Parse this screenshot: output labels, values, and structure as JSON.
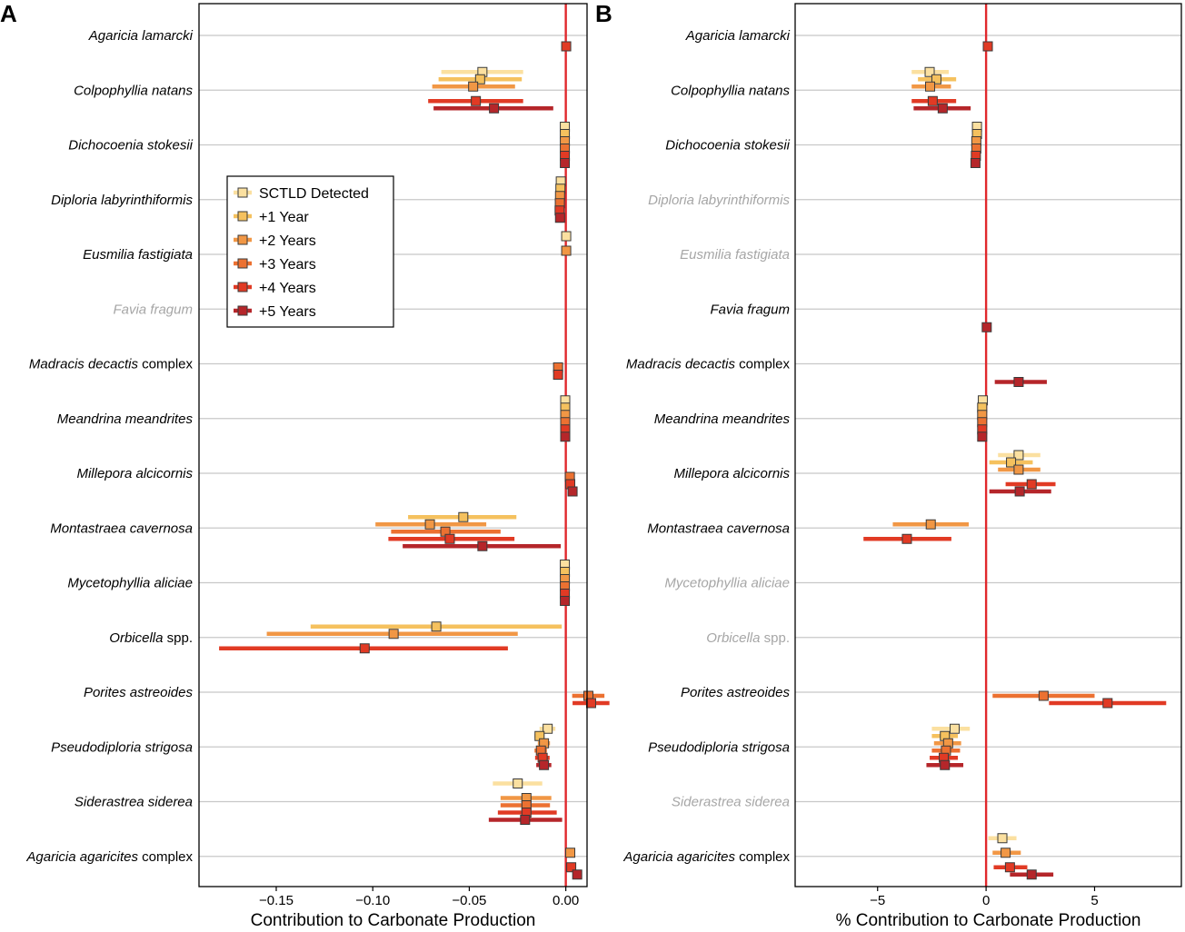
{
  "colors": {
    "series": [
      "#fbe0a0",
      "#f5c15e",
      "#f19745",
      "#ec7131",
      "#e13a24",
      "#b5262a"
    ],
    "reference_line": "#e0282c",
    "grid": "#c8c8c8"
  },
  "legend": {
    "position": "top-left inside panel A",
    "entries": [
      "SCTLD Detected",
      "+1 Year",
      "+2 Years",
      "+3 Years",
      "+4 Years",
      "+5 Years"
    ]
  },
  "species": [
    {
      "genus": "Agaricia lamarcki",
      "suffix": ""
    },
    {
      "genus": "Colpophyllia natans",
      "suffix": ""
    },
    {
      "genus": "Dichocoenia stokesii",
      "suffix": ""
    },
    {
      "genus": "Diploria labyrinthiformis",
      "suffix": ""
    },
    {
      "genus": "Eusmilia fastigiata",
      "suffix": ""
    },
    {
      "genus": "Favia fragum",
      "suffix": ""
    },
    {
      "genus": "Madracis decactis",
      "suffix": " complex"
    },
    {
      "genus": "Meandrina meandrites",
      "suffix": ""
    },
    {
      "genus": "Millepora alcicornis",
      "suffix": ""
    },
    {
      "genus": "Montastraea cavernosa",
      "suffix": ""
    },
    {
      "genus": "Mycetophyllia aliciae",
      "suffix": ""
    },
    {
      "genus": "Orbicella",
      "suffix": " spp."
    },
    {
      "genus": "Porites astreoides",
      "suffix": ""
    },
    {
      "genus": "Pseudodiploria strigosa",
      "suffix": ""
    },
    {
      "genus": "Siderastrea siderea",
      "suffix": ""
    },
    {
      "genus": "Agaricia agaricites",
      "suffix": " complex"
    }
  ],
  "chart_data": [
    {
      "type": "forest",
      "panel_label": "A",
      "xlabel": "Contribution to Carbonate Production",
      "xlim": [
        -0.19,
        0.011
      ],
      "xticks": [
        -0.15,
        -0.1,
        -0.05,
        0.0
      ],
      "xtick_labels": [
        "−0.15",
        "−0.10",
        "−0.05",
        "0.00"
      ],
      "reference_x": 0,
      "absent_species": [
        5
      ],
      "points": [
        {
          "row": 0,
          "series": 4,
          "x": 0.0002,
          "lo": 0.0002,
          "hi": 0.0002
        },
        {
          "row": 1,
          "series": 0,
          "x": -0.0432,
          "lo": -0.0645,
          "hi": -0.0221
        },
        {
          "row": 1,
          "series": 1,
          "x": -0.0444,
          "lo": -0.0659,
          "hi": -0.0228
        },
        {
          "row": 1,
          "series": 2,
          "x": -0.048,
          "lo": -0.0692,
          "hi": -0.0263
        },
        {
          "row": 1,
          "series": 4,
          "x": -0.0466,
          "lo": -0.0713,
          "hi": -0.0221
        },
        {
          "row": 1,
          "series": 5,
          "x": -0.0372,
          "lo": -0.0685,
          "hi": -0.0065
        },
        {
          "row": 2,
          "series": 0,
          "x": -0.0005,
          "lo": -0.0005,
          "hi": -0.0005
        },
        {
          "row": 2,
          "series": 1,
          "x": -0.0005,
          "lo": -0.0005,
          "hi": -0.0005
        },
        {
          "row": 2,
          "series": 2,
          "x": -0.0005,
          "lo": -0.0005,
          "hi": -0.0005
        },
        {
          "row": 2,
          "series": 3,
          "x": -0.0005,
          "lo": -0.0005,
          "hi": -0.0005
        },
        {
          "row": 2,
          "series": 4,
          "x": -0.0005,
          "lo": -0.0005,
          "hi": -0.0005
        },
        {
          "row": 2,
          "series": 5,
          "x": -0.0005,
          "lo": -0.0005,
          "hi": -0.0005
        },
        {
          "row": 3,
          "series": 0,
          "x": -0.0026,
          "lo": -0.0026,
          "hi": -0.0026
        },
        {
          "row": 3,
          "series": 1,
          "x": -0.0028,
          "lo": -0.0028,
          "hi": -0.0028
        },
        {
          "row": 3,
          "series": 2,
          "x": -0.003,
          "lo": -0.003,
          "hi": -0.003
        },
        {
          "row": 3,
          "series": 3,
          "x": -0.0031,
          "lo": -0.0031,
          "hi": -0.0031
        },
        {
          "row": 3,
          "series": 4,
          "x": -0.0032,
          "lo": -0.0032,
          "hi": -0.0032
        },
        {
          "row": 3,
          "series": 5,
          "x": -0.003,
          "lo": -0.003,
          "hi": -0.003
        },
        {
          "row": 4,
          "series": 0,
          "x": 0.0002,
          "lo": 0.0002,
          "hi": 0.0002
        },
        {
          "row": 4,
          "series": 2,
          "x": 0.0002,
          "lo": 0.0002,
          "hi": 0.0002
        },
        {
          "row": 6,
          "series": 3,
          "x": -0.004,
          "lo": -0.004,
          "hi": -0.004
        },
        {
          "row": 6,
          "series": 4,
          "x": -0.004,
          "lo": -0.005,
          "hi": -0.003
        },
        {
          "row": 7,
          "series": 0,
          "x": -0.0003,
          "lo": -0.0003,
          "hi": -0.0003
        },
        {
          "row": 7,
          "series": 1,
          "x": -0.0003,
          "lo": -0.0003,
          "hi": -0.0003
        },
        {
          "row": 7,
          "series": 2,
          "x": -0.0003,
          "lo": -0.0003,
          "hi": -0.0003
        },
        {
          "row": 7,
          "series": 3,
          "x": -0.0003,
          "lo": -0.0003,
          "hi": -0.0003
        },
        {
          "row": 7,
          "series": 4,
          "x": -0.0003,
          "lo": -0.0003,
          "hi": -0.0003
        },
        {
          "row": 7,
          "series": 5,
          "x": -0.0003,
          "lo": -0.0003,
          "hi": -0.0003
        },
        {
          "row": 8,
          "series": 3,
          "x": 0.0021,
          "lo": 0.0021,
          "hi": 0.0021
        },
        {
          "row": 8,
          "series": 4,
          "x": 0.0023,
          "lo": 0.0023,
          "hi": 0.0023
        },
        {
          "row": 8,
          "series": 5,
          "x": 0.0035,
          "lo": 0.0035,
          "hi": 0.0035
        },
        {
          "row": 9,
          "series": 1,
          "x": -0.0531,
          "lo": -0.0817,
          "hi": -0.0256
        },
        {
          "row": 9,
          "series": 2,
          "x": -0.0704,
          "lo": -0.0986,
          "hi": -0.0412
        },
        {
          "row": 9,
          "series": 3,
          "x": -0.0624,
          "lo": -0.0905,
          "hi": -0.0338
        },
        {
          "row": 9,
          "series": 4,
          "x": -0.0601,
          "lo": -0.0919,
          "hi": -0.0266
        },
        {
          "row": 9,
          "series": 5,
          "x": -0.0432,
          "lo": -0.0845,
          "hi": -0.0026
        },
        {
          "row": 10,
          "series": 0,
          "x": -0.0005,
          "lo": -0.0005,
          "hi": -0.0005
        },
        {
          "row": 10,
          "series": 1,
          "x": -0.0005,
          "lo": -0.0005,
          "hi": -0.0005
        },
        {
          "row": 10,
          "series": 2,
          "x": -0.0005,
          "lo": -0.0005,
          "hi": -0.0005
        },
        {
          "row": 10,
          "series": 3,
          "x": -0.0005,
          "lo": -0.0005,
          "hi": -0.0005
        },
        {
          "row": 10,
          "series": 4,
          "x": -0.0005,
          "lo": -0.0005,
          "hi": -0.0005
        },
        {
          "row": 10,
          "series": 5,
          "x": -0.0005,
          "lo": -0.0005,
          "hi": -0.0005
        },
        {
          "row": 11,
          "series": 1,
          "x": -0.0671,
          "lo": -0.1322,
          "hi": -0.0021
        },
        {
          "row": 11,
          "series": 2,
          "x": -0.0892,
          "lo": -0.1549,
          "hi": -0.0249
        },
        {
          "row": 11,
          "series": 4,
          "x": -0.1042,
          "lo": -0.1796,
          "hi": -0.03
        },
        {
          "row": 12,
          "series": 3,
          "x": 0.0117,
          "lo": 0.0033,
          "hi": 0.02
        },
        {
          "row": 12,
          "series": 4,
          "x": 0.0131,
          "lo": 0.0035,
          "hi": 0.0226
        },
        {
          "row": 13,
          "series": 0,
          "x": -0.0094,
          "lo": -0.0136,
          "hi": -0.0054
        },
        {
          "row": 13,
          "series": 1,
          "x": -0.0136,
          "lo": -0.0162,
          "hi": -0.011
        },
        {
          "row": 13,
          "series": 2,
          "x": -0.0113,
          "lo": -0.0145,
          "hi": -0.0082
        },
        {
          "row": 13,
          "series": 3,
          "x": -0.0129,
          "lo": -0.0162,
          "hi": -0.0098
        },
        {
          "row": 13,
          "series": 4,
          "x": -0.012,
          "lo": -0.0159,
          "hi": -0.0084
        },
        {
          "row": 13,
          "series": 5,
          "x": -0.0113,
          "lo": -0.0153,
          "hi": -0.0075
        },
        {
          "row": 14,
          "series": 0,
          "x": -0.0249,
          "lo": -0.0378,
          "hi": -0.0122
        },
        {
          "row": 14,
          "series": 2,
          "x": -0.0204,
          "lo": -0.0338,
          "hi": -0.0075
        },
        {
          "row": 14,
          "series": 3,
          "x": -0.0204,
          "lo": -0.0338,
          "hi": -0.0082
        },
        {
          "row": 14,
          "series": 4,
          "x": -0.0204,
          "lo": -0.0352,
          "hi": -0.0047
        },
        {
          "row": 14,
          "series": 5,
          "x": -0.0211,
          "lo": -0.0399,
          "hi": -0.0019
        },
        {
          "row": 15,
          "series": 2,
          "x": 0.0023,
          "lo": 0.0023,
          "hi": 0.0023
        },
        {
          "row": 15,
          "series": 4,
          "x": 0.0028,
          "lo": 0.0028,
          "hi": 0.0028
        },
        {
          "row": 15,
          "series": 5,
          "x": 0.0059,
          "lo": 0.0059,
          "hi": 0.0059
        }
      ]
    },
    {
      "type": "forest",
      "panel_label": "B",
      "xlabel": "% Contribution to Carbonate Production",
      "xlim": [
        -8.8,
        9.0
      ],
      "xticks": [
        -5,
        0,
        5
      ],
      "xtick_labels": [
        "−5",
        "0",
        "5"
      ],
      "reference_x": 0,
      "absent_species": [
        3,
        4,
        10,
        11,
        14
      ],
      "points": [
        {
          "row": 0,
          "series": 4,
          "x": 0.08,
          "lo": 0.08,
          "hi": 0.08
        },
        {
          "row": 1,
          "series": 0,
          "x": -2.6,
          "lo": -3.43,
          "hi": -1.72
        },
        {
          "row": 1,
          "series": 1,
          "x": -2.29,
          "lo": -3.14,
          "hi": -1.38
        },
        {
          "row": 1,
          "series": 2,
          "x": -2.58,
          "lo": -3.43,
          "hi": -1.62
        },
        {
          "row": 1,
          "series": 4,
          "x": -2.46,
          "lo": -3.43,
          "hi": -1.38
        },
        {
          "row": 1,
          "series": 5,
          "x": -2.0,
          "lo": -3.34,
          "hi": -0.71
        },
        {
          "row": 2,
          "series": 0,
          "x": -0.42,
          "lo": -0.42,
          "hi": -0.42
        },
        {
          "row": 2,
          "series": 1,
          "x": -0.42,
          "lo": -0.42,
          "hi": -0.42
        },
        {
          "row": 2,
          "series": 2,
          "x": -0.45,
          "lo": -0.45,
          "hi": -0.45
        },
        {
          "row": 2,
          "series": 3,
          "x": -0.45,
          "lo": -0.45,
          "hi": -0.45
        },
        {
          "row": 2,
          "series": 4,
          "x": -0.47,
          "lo": -0.47,
          "hi": -0.47
        },
        {
          "row": 2,
          "series": 5,
          "x": -0.49,
          "lo": -0.49,
          "hi": -0.49
        },
        {
          "row": 5,
          "series": 5,
          "x": 0.03,
          "lo": 0.03,
          "hi": 0.03
        },
        {
          "row": 6,
          "series": 5,
          "x": 1.5,
          "lo": 0.4,
          "hi": 2.8
        },
        {
          "row": 7,
          "series": 0,
          "x": -0.15,
          "lo": -0.15,
          "hi": -0.15
        },
        {
          "row": 7,
          "series": 1,
          "x": -0.18,
          "lo": -0.18,
          "hi": -0.18
        },
        {
          "row": 7,
          "series": 2,
          "x": -0.18,
          "lo": -0.18,
          "hi": -0.18
        },
        {
          "row": 7,
          "series": 3,
          "x": -0.18,
          "lo": -0.18,
          "hi": -0.18
        },
        {
          "row": 7,
          "series": 4,
          "x": -0.18,
          "lo": -0.18,
          "hi": -0.18
        },
        {
          "row": 7,
          "series": 5,
          "x": -0.18,
          "lo": -0.18,
          "hi": -0.18
        },
        {
          "row": 8,
          "series": 0,
          "x": 1.5,
          "lo": 0.55,
          "hi": 2.5
        },
        {
          "row": 8,
          "series": 1,
          "x": 1.15,
          "lo": 0.15,
          "hi": 2.15
        },
        {
          "row": 8,
          "series": 2,
          "x": 1.5,
          "lo": 0.55,
          "hi": 2.5
        },
        {
          "row": 8,
          "series": 4,
          "x": 2.1,
          "lo": 0.9,
          "hi": 3.2
        },
        {
          "row": 8,
          "series": 5,
          "x": 1.55,
          "lo": 0.15,
          "hi": 3.0
        },
        {
          "row": 9,
          "series": 2,
          "x": -2.55,
          "lo": -4.3,
          "hi": -0.8
        },
        {
          "row": 9,
          "series": 4,
          "x": -3.65,
          "lo": -5.65,
          "hi": -1.6
        },
        {
          "row": 12,
          "series": 3,
          "x": 2.65,
          "lo": 0.3,
          "hi": 5.0
        },
        {
          "row": 12,
          "series": 4,
          "x": 5.6,
          "lo": 2.9,
          "hi": 8.3
        },
        {
          "row": 13,
          "series": 0,
          "x": -1.45,
          "lo": -2.5,
          "hi": -0.75
        },
        {
          "row": 13,
          "series": 1,
          "x": -1.9,
          "lo": -2.5,
          "hi": -1.3
        },
        {
          "row": 13,
          "series": 2,
          "x": -1.75,
          "lo": -2.4,
          "hi": -1.15
        },
        {
          "row": 13,
          "series": 3,
          "x": -1.85,
          "lo": -2.5,
          "hi": -1.2
        },
        {
          "row": 13,
          "series": 4,
          "x": -1.95,
          "lo": -2.6,
          "hi": -1.3
        },
        {
          "row": 13,
          "series": 5,
          "x": -1.9,
          "lo": -2.75,
          "hi": -1.05
        },
        {
          "row": 15,
          "series": 0,
          "x": 0.75,
          "lo": 0.1,
          "hi": 1.4
        },
        {
          "row": 15,
          "series": 2,
          "x": 0.9,
          "lo": 0.3,
          "hi": 1.6
        },
        {
          "row": 15,
          "series": 4,
          "x": 1.1,
          "lo": 0.35,
          "hi": 1.9
        },
        {
          "row": 15,
          "series": 5,
          "x": 2.1,
          "lo": 1.1,
          "hi": 3.1
        }
      ]
    }
  ]
}
